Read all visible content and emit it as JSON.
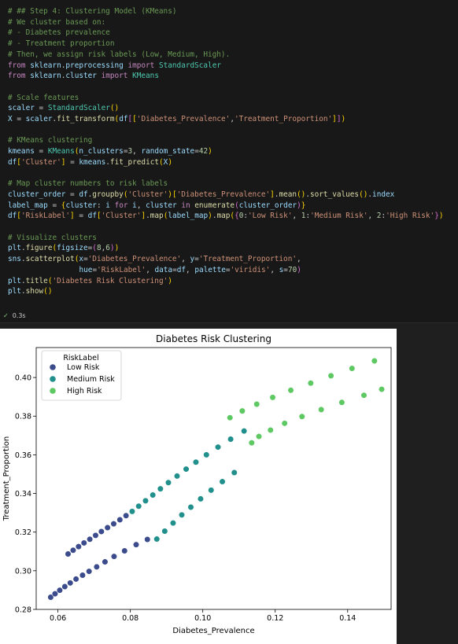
{
  "code_lines": [
    "# ## Step 4: Clustering Model (KMeans)",
    "# We cluster based on:",
    "# - Diabetes prevalence",
    "# - Treatment proportion",
    "# Then, we assign risk labels (Low, Medium, High).",
    "from sklearn.preprocessing import StandardScaler",
    "from sklearn.cluster import KMeans",
    "",
    "# Scale features",
    "scaler = StandardScaler()",
    "X = scaler.fit_transform(df[['Diabetes_Prevalence','Treatment_Proportion']])",
    "",
    "# KMeans clustering",
    "kmeans = KMeans(n_clusters=3, random_state=42)",
    "df['Cluster'] = kmeans.fit_predict(X)",
    "",
    "# Map cluster numbers to risk labels",
    "cluster_order = df.groupby('Cluster')['Diabetes_Prevalence'].mean().sort_values().index",
    "label_map = {cluster: i for i, cluster in enumerate(cluster_order)}",
    "df['RiskLabel'] = df['Cluster'].map(label_map).map({0:'Low Risk', 1:'Medium Risk', 2:'High Risk'})",
    "",
    "# Visualize clusters",
    "plt.figure(figsize=(8,6))",
    "sns.scatterplot(x='Diabetes_Prevalence', y='Treatment_Proportion',",
    "                hue='RiskLabel', data=df, palette='viridis', s=70)",
    "plt.title('Diabetes Risk Clustering')",
    "plt.show()"
  ],
  "execution": {
    "status_icon": "check-icon",
    "time": "0.3s"
  },
  "chart_data": {
    "type": "scatter",
    "title": "Diabetes Risk Clustering",
    "xlabel": "Diabetes_Prevalence",
    "ylabel": "Treatment_Proportion",
    "xlim": [
      0.054,
      0.152
    ],
    "ylim": [
      0.28,
      0.4155
    ],
    "xticks": [
      0.06,
      0.08,
      0.1,
      0.12,
      0.14
    ],
    "xtick_labels": [
      "0.06",
      "0.08",
      "0.10",
      "0.12",
      "0.14"
    ],
    "yticks": [
      0.28,
      0.3,
      0.32,
      0.34,
      0.36,
      0.38,
      0.4
    ],
    "ytick_labels": [
      "0.28",
      "0.30",
      "0.32",
      "0.34",
      "0.36",
      "0.38",
      "0.40"
    ],
    "legend": {
      "title": "RiskLabel",
      "placement": "upper-left"
    },
    "series": [
      {
        "name": "Low Risk",
        "color": "#3b4b8c",
        "x": [
          0.058,
          0.0592,
          0.0605,
          0.0619,
          0.0634,
          0.065,
          0.0668,
          0.0686,
          0.0707,
          0.073,
          0.0755,
          0.0784,
          0.0816,
          0.0847,
          0.0628,
          0.0642,
          0.0657,
          0.0672,
          0.0688,
          0.0704,
          0.072,
          0.0737,
          0.0754,
          0.0771,
          0.0788
        ],
        "y": [
          0.2863,
          0.2881,
          0.2899,
          0.2918,
          0.2937,
          0.2957,
          0.2977,
          0.2997,
          0.302,
          0.3046,
          0.3074,
          0.3103,
          0.3135,
          0.3162,
          0.3087,
          0.3106,
          0.3125,
          0.3144,
          0.3163,
          0.3183,
          0.3203,
          0.3223,
          0.3243,
          0.3264,
          0.3285
        ]
      },
      {
        "name": "Medium Risk",
        "color": "#21908c",
        "x": [
          0.0805,
          0.0823,
          0.0842,
          0.0862,
          0.0883,
          0.0905,
          0.0929,
          0.0954,
          0.0981,
          0.101,
          0.1042,
          0.1077,
          0.1114,
          0.0873,
          0.0895,
          0.0918,
          0.0942,
          0.0967,
          0.0994,
          0.1023,
          0.1054,
          0.1087
        ],
        "y": [
          0.3307,
          0.3334,
          0.3362,
          0.3392,
          0.3424,
          0.3456,
          0.349,
          0.3526,
          0.3562,
          0.36,
          0.364,
          0.3681,
          0.3723,
          0.3164,
          0.3205,
          0.3247,
          0.3289,
          0.3329,
          0.3372,
          0.3417,
          0.3461,
          0.3508
        ]
      },
      {
        "name": "High Risk",
        "color": "#5ec962",
        "x": [
          0.1135,
          0.1155,
          0.1187,
          0.1226,
          0.1274,
          0.1327,
          0.1384,
          0.1445,
          0.1494,
          0.1075,
          0.1109,
          0.1149,
          0.1193,
          0.1243,
          0.1298,
          0.1354,
          0.1412,
          0.1474
        ],
        "y": [
          0.3662,
          0.3695,
          0.3728,
          0.3763,
          0.3798,
          0.3834,
          0.3871,
          0.3908,
          0.3939,
          0.3792,
          0.3827,
          0.3862,
          0.3897,
          0.3934,
          0.3971,
          0.4009,
          0.4047,
          0.4086
        ]
      }
    ]
  }
}
